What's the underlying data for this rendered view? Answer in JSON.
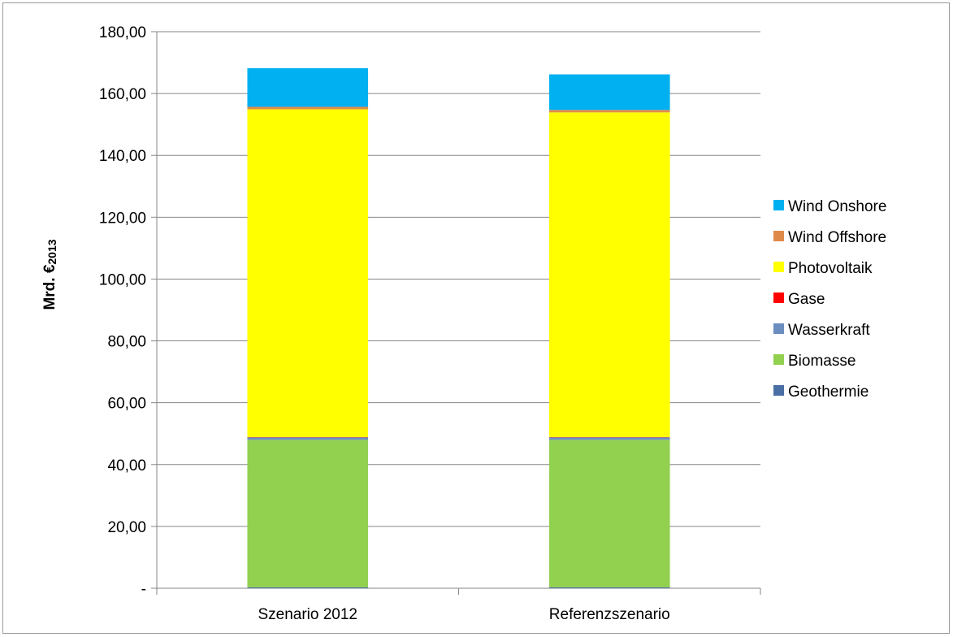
{
  "chart_data": {
    "type": "bar",
    "stacked": true,
    "categories": [
      "Szenario 2012",
      "Referenzszenario"
    ],
    "series": [
      {
        "name": "Geothermie",
        "color": "#4A6FA5",
        "values": [
          0.3,
          0.3
        ]
      },
      {
        "name": "Biomasse",
        "color": "#92D050",
        "values": [
          47.7,
          47.7
        ]
      },
      {
        "name": "Wasserkraft",
        "color": "#6C8EBF",
        "values": [
          0.8,
          0.8
        ]
      },
      {
        "name": "Gase",
        "color": "#FF0000",
        "values": [
          0.1,
          0.1
        ]
      },
      {
        "name": "Photovoltaik",
        "color": "#FFFF00",
        "values": [
          106.0,
          105.0
        ]
      },
      {
        "name": "Wind Offshore",
        "color": "#E08A4A",
        "values": [
          0.8,
          0.8
        ]
      },
      {
        "name": "Wind Onshore",
        "color": "#00B0F0",
        "values": [
          12.5,
          11.5
        ]
      }
    ],
    "ylabel": "Mrd. €",
    "ylabel_subscript": "2013",
    "ylim": [
      0,
      180
    ],
    "yticks": [
      0,
      20,
      40,
      60,
      80,
      100,
      120,
      140,
      160,
      180
    ],
    "ytick_labels": [
      "-",
      "20,00",
      "40,00",
      "60,00",
      "80,00",
      "100,00",
      "120,00",
      "140,00",
      "160,00",
      "180,00"
    ],
    "grid": true,
    "legend_position": "right",
    "legend_order": [
      "Wind Onshore",
      "Wind Offshore",
      "Photovoltaik",
      "Gase",
      "Wasserkraft",
      "Biomasse",
      "Geothermie"
    ]
  }
}
